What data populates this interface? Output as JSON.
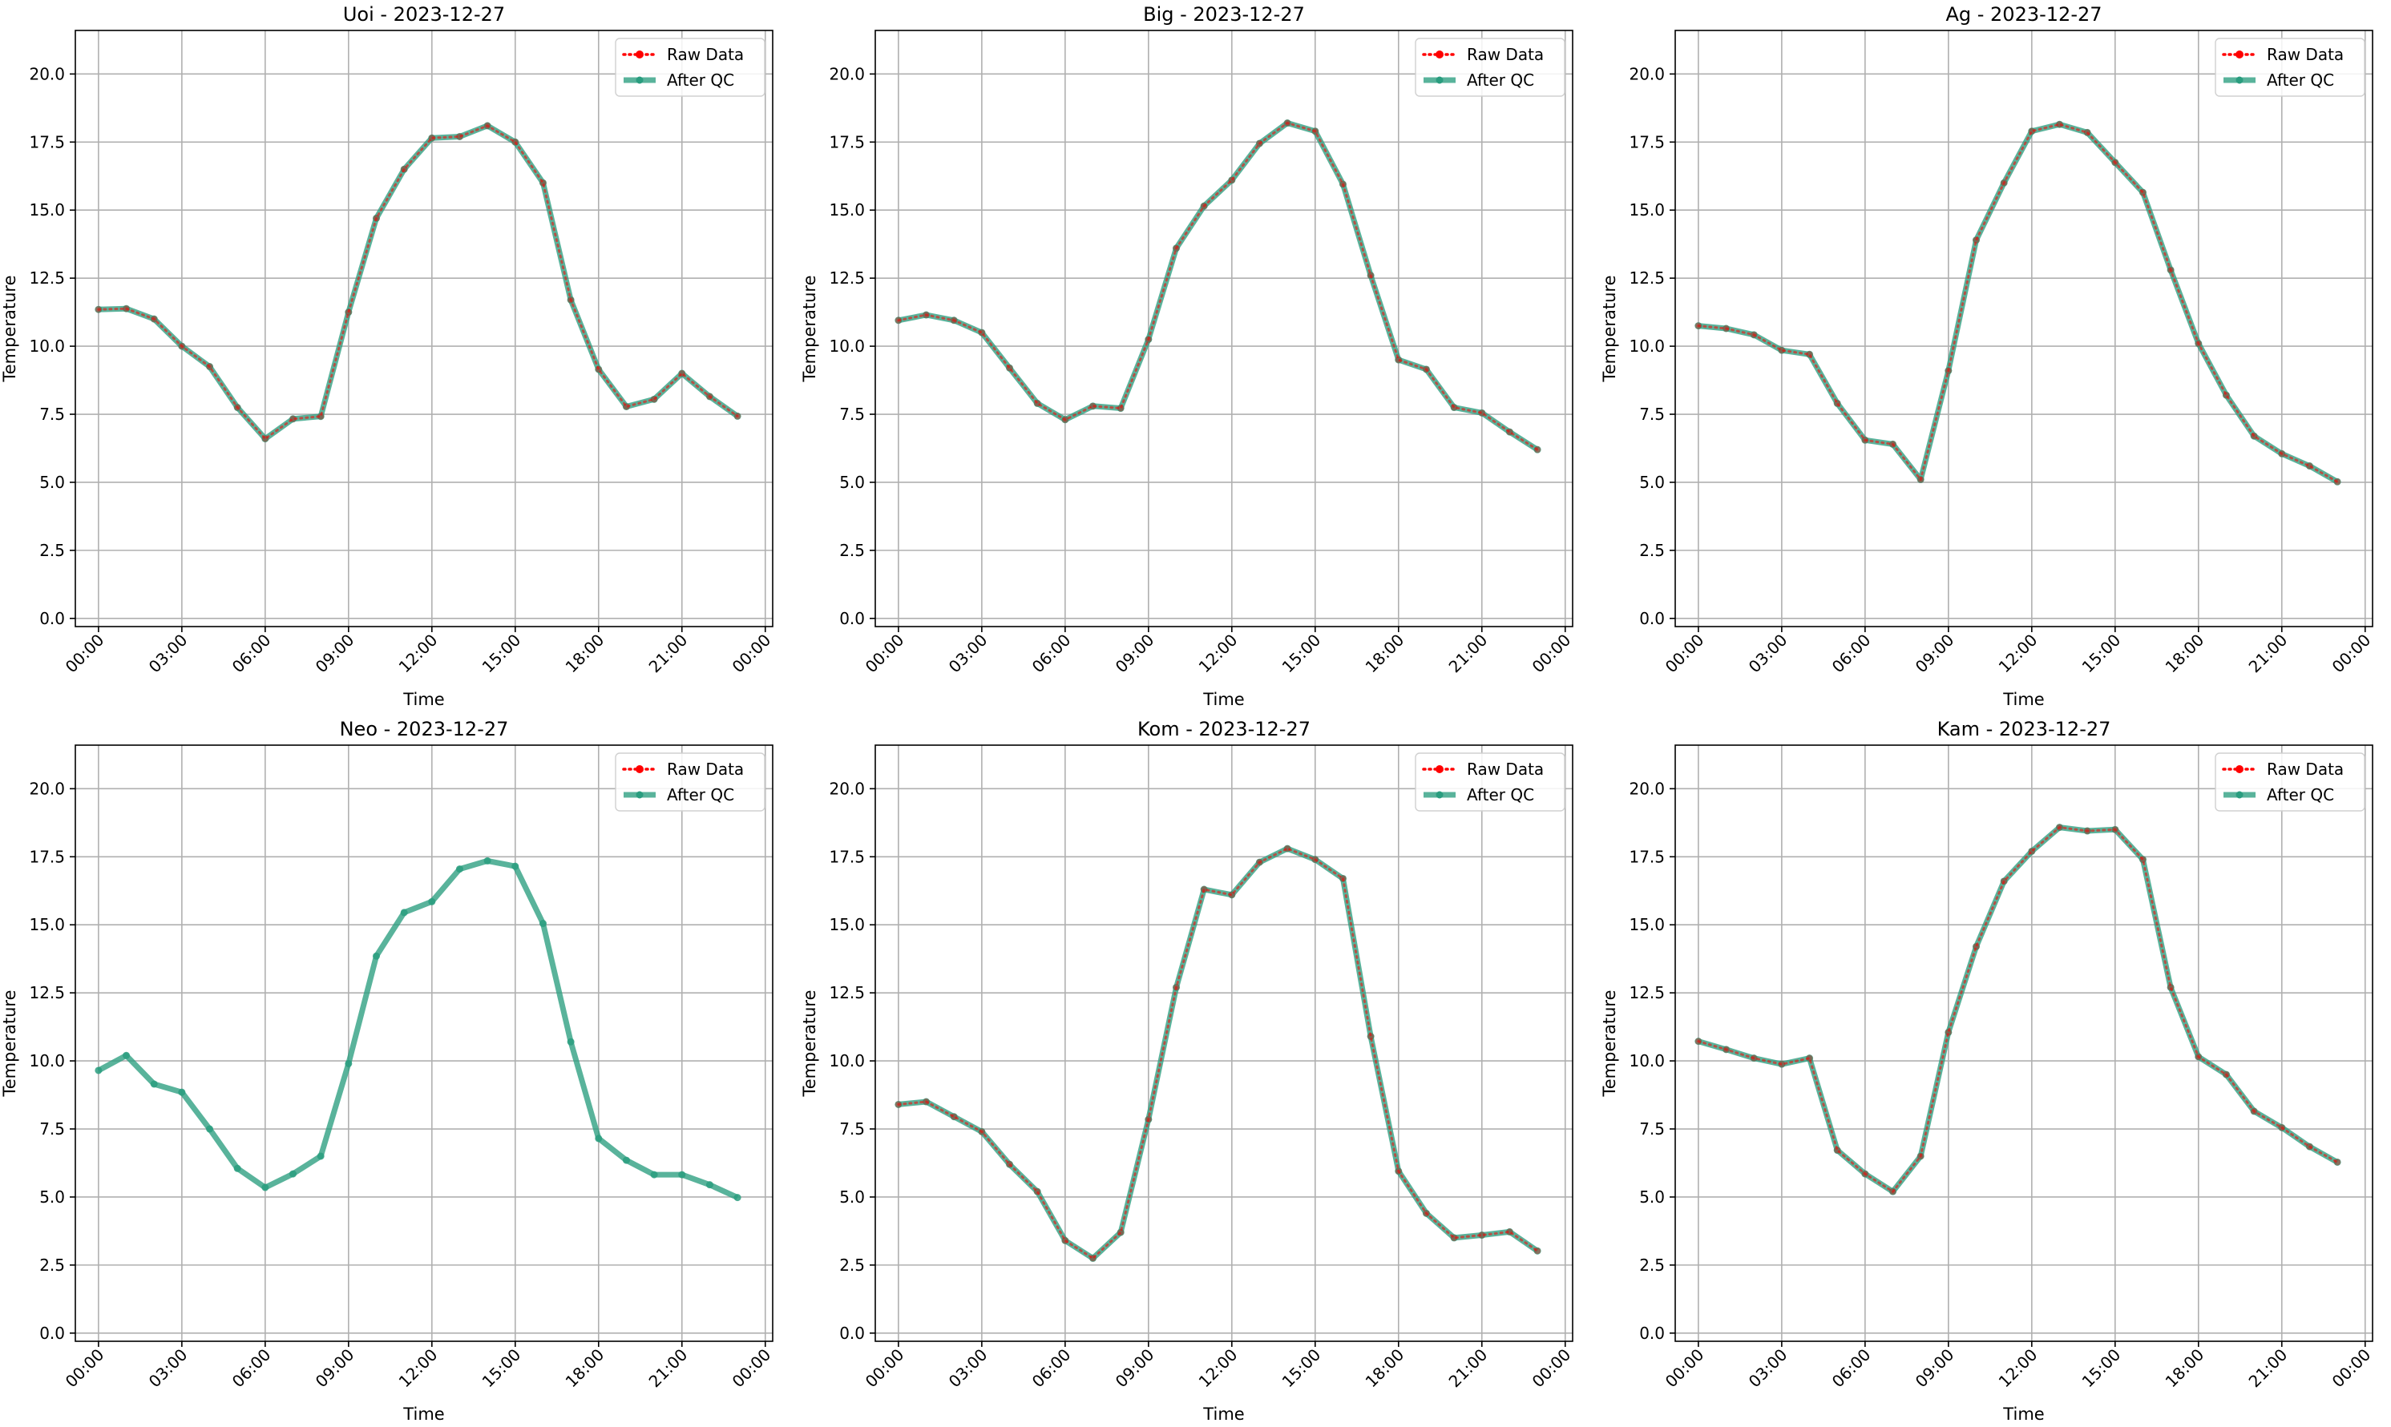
{
  "chart_data": [
    {
      "type": "line",
      "title": "Uoi - 2023-12-27",
      "xlabel": "Time",
      "ylabel": "Temperature",
      "xlim": [
        "2023-12-27 -0:50",
        "2023-12-28 00:16"
      ],
      "ylim": [
        -0.3,
        21.6
      ],
      "xticks": [
        "00:00",
        "03:00",
        "06:00",
        "09:00",
        "12:00",
        "15:00",
        "18:00",
        "21:00",
        "00:00"
      ],
      "yticks": [
        "0.0",
        "2.5",
        "5.0",
        "7.5",
        "10.0",
        "12.5",
        "15.0",
        "17.5",
        "20.0"
      ],
      "grid": true,
      "legend_position": "top-right",
      "x": [
        "00:00",
        "01:00",
        "02:00",
        "03:00",
        "04:00",
        "05:00",
        "06:00",
        "07:00",
        "08:00",
        "09:00",
        "10:00",
        "11:00",
        "12:00",
        "13:00",
        "14:00",
        "15:00",
        "16:00",
        "17:00",
        "18:00",
        "19:00",
        "20:00",
        "21:00",
        "22:00",
        "23:00"
      ],
      "series": [
        {
          "name": "Raw Data",
          "color": "#ff0000",
          "values": [
            11.35,
            11.38,
            11.0,
            10.0,
            9.25,
            7.75,
            6.6,
            7.33,
            7.42,
            11.25,
            14.7,
            16.5,
            17.65,
            17.7,
            18.1,
            17.5,
            16.0,
            11.7,
            9.15,
            7.78,
            8.05,
            9.0,
            8.15,
            7.43
          ]
        },
        {
          "name": "After QC",
          "color": "#2a9d7f",
          "values": [
            11.35,
            11.38,
            11.0,
            10.0,
            9.25,
            7.75,
            6.6,
            7.33,
            7.42,
            11.25,
            14.7,
            16.5,
            17.65,
            17.7,
            18.1,
            17.5,
            16.0,
            11.7,
            9.15,
            7.78,
            8.05,
            9.0,
            8.15,
            7.43
          ]
        }
      ]
    },
    {
      "type": "line",
      "title": "Big - 2023-12-27",
      "xlabel": "Time",
      "ylabel": "Temperature",
      "xlim": [
        "2023-12-27 -0:50",
        "2023-12-28 00:16"
      ],
      "ylim": [
        -0.3,
        21.6
      ],
      "xticks": [
        "00:00",
        "03:00",
        "06:00",
        "09:00",
        "12:00",
        "15:00",
        "18:00",
        "21:00",
        "00:00"
      ],
      "yticks": [
        "0.0",
        "2.5",
        "5.0",
        "7.5",
        "10.0",
        "12.5",
        "15.0",
        "17.5",
        "20.0"
      ],
      "grid": true,
      "legend_position": "top-right",
      "x": [
        "00:00",
        "01:00",
        "02:00",
        "03:00",
        "04:00",
        "05:00",
        "06:00",
        "07:00",
        "08:00",
        "09:00",
        "10:00",
        "11:00",
        "12:00",
        "13:00",
        "14:00",
        "15:00",
        "16:00",
        "17:00",
        "18:00",
        "19:00",
        "20:00",
        "21:00",
        "22:00",
        "23:00"
      ],
      "series": [
        {
          "name": "Raw Data",
          "color": "#ff0000",
          "values": [
            10.95,
            11.15,
            10.95,
            10.5,
            9.2,
            7.9,
            7.3,
            7.8,
            7.72,
            10.25,
            13.6,
            15.15,
            16.1,
            17.45,
            18.2,
            17.9,
            15.95,
            12.6,
            9.5,
            9.15,
            7.75,
            7.55,
            6.85,
            6.2
          ]
        },
        {
          "name": "After QC",
          "color": "#2a9d7f",
          "values": [
            10.95,
            11.15,
            10.95,
            10.5,
            9.2,
            7.9,
            7.3,
            7.8,
            7.72,
            10.25,
            13.6,
            15.15,
            16.1,
            17.45,
            18.2,
            17.9,
            15.95,
            12.6,
            9.5,
            9.15,
            7.75,
            7.55,
            6.85,
            6.2
          ]
        }
      ]
    },
    {
      "type": "line",
      "title": "Ag - 2023-12-27",
      "xlabel": "Time",
      "ylabel": "Temperature",
      "xlim": [
        "2023-12-27 -0:50",
        "2023-12-28 00:16"
      ],
      "ylim": [
        -0.3,
        21.6
      ],
      "xticks": [
        "00:00",
        "03:00",
        "06:00",
        "09:00",
        "12:00",
        "15:00",
        "18:00",
        "21:00",
        "00:00"
      ],
      "yticks": [
        "0.0",
        "2.5",
        "5.0",
        "7.5",
        "10.0",
        "12.5",
        "15.0",
        "17.5",
        "20.0"
      ],
      "grid": true,
      "legend_position": "top-right",
      "x": [
        "00:00",
        "01:00",
        "02:00",
        "03:00",
        "04:00",
        "05:00",
        "06:00",
        "07:00",
        "08:00",
        "09:00",
        "10:00",
        "11:00",
        "12:00",
        "13:00",
        "14:00",
        "15:00",
        "16:00",
        "17:00",
        "18:00",
        "19:00",
        "20:00",
        "21:00",
        "22:00",
        "23:00"
      ],
      "series": [
        {
          "name": "Raw Data",
          "color": "#ff0000",
          "values": [
            10.75,
            10.65,
            10.42,
            9.85,
            9.7,
            7.9,
            6.55,
            6.4,
            5.1,
            9.1,
            13.9,
            16.0,
            17.9,
            18.15,
            17.85,
            16.75,
            15.65,
            12.8,
            10.1,
            8.2,
            6.7,
            6.05,
            5.6,
            5.02
          ]
        },
        {
          "name": "After QC",
          "color": "#2a9d7f",
          "values": [
            10.75,
            10.65,
            10.42,
            9.85,
            9.7,
            7.9,
            6.55,
            6.4,
            5.1,
            9.1,
            13.9,
            16.0,
            17.9,
            18.15,
            17.85,
            16.75,
            15.65,
            12.8,
            10.1,
            8.2,
            6.7,
            6.05,
            5.6,
            5.02
          ]
        }
      ]
    },
    {
      "type": "line",
      "title": "Neo - 2023-12-27",
      "xlabel": "Time",
      "ylabel": "Temperature",
      "xlim": [
        "2023-12-27 -0:50",
        "2023-12-28 00:16"
      ],
      "ylim": [
        -0.3,
        21.6
      ],
      "xticks": [
        "00:00",
        "03:00",
        "06:00",
        "09:00",
        "12:00",
        "15:00",
        "18:00",
        "21:00",
        "00:00"
      ],
      "yticks": [
        "0.0",
        "2.5",
        "5.0",
        "7.5",
        "10.0",
        "12.5",
        "15.0",
        "17.5",
        "20.0"
      ],
      "grid": true,
      "legend_position": "top-right",
      "x": [
        "00:00",
        "01:00",
        "02:00",
        "03:00",
        "04:00",
        "05:00",
        "06:00",
        "07:00",
        "08:00",
        "09:00",
        "10:00",
        "11:00",
        "12:00",
        "13:00",
        "14:00",
        "15:00",
        "16:00",
        "17:00",
        "18:00",
        "19:00",
        "20:00",
        "21:00",
        "22:00",
        "23:00"
      ],
      "series": [
        {
          "name": "Raw Data",
          "color": "#ff0000",
          "values": [
            null,
            null,
            null,
            null,
            null,
            null,
            null,
            null,
            null,
            null,
            null,
            null,
            null,
            null,
            null,
            null,
            null,
            null,
            null,
            null,
            null,
            null,
            null,
            null
          ]
        },
        {
          "name": "After QC",
          "color": "#2a9d7f",
          "values": [
            9.65,
            10.2,
            9.15,
            8.85,
            7.5,
            6.05,
            5.35,
            5.85,
            6.5,
            9.9,
            13.85,
            15.45,
            15.85,
            17.05,
            17.35,
            17.15,
            15.05,
            10.7,
            7.15,
            6.35,
            5.82,
            5.82,
            5.45,
            4.98
          ]
        }
      ]
    },
    {
      "type": "line",
      "title": "Kom - 2023-12-27",
      "xlabel": "Time",
      "ylabel": "Temperature",
      "xlim": [
        "2023-12-27 -0:50",
        "2023-12-28 00:16"
      ],
      "ylim": [
        -0.3,
        21.6
      ],
      "xticks": [
        "00:00",
        "03:00",
        "06:00",
        "09:00",
        "12:00",
        "15:00",
        "18:00",
        "21:00",
        "00:00"
      ],
      "yticks": [
        "0.0",
        "2.5",
        "5.0",
        "7.5",
        "10.0",
        "12.5",
        "15.0",
        "17.5",
        "20.0"
      ],
      "grid": true,
      "legend_position": "top-right",
      "x": [
        "00:00",
        "01:00",
        "02:00",
        "03:00",
        "04:00",
        "05:00",
        "06:00",
        "07:00",
        "08:00",
        "09:00",
        "10:00",
        "11:00",
        "12:00",
        "13:00",
        "14:00",
        "15:00",
        "16:00",
        "17:00",
        "18:00",
        "19:00",
        "20:00",
        "21:00",
        "22:00",
        "23:00"
      ],
      "series": [
        {
          "name": "Raw Data",
          "color": "#ff0000",
          "values": [
            8.4,
            8.5,
            7.95,
            7.4,
            6.2,
            5.2,
            3.4,
            2.75,
            3.7,
            7.85,
            12.7,
            16.3,
            16.1,
            17.3,
            17.8,
            17.4,
            16.7,
            10.9,
            5.95,
            4.4,
            3.5,
            3.6,
            3.72,
            3.02
          ]
        },
        {
          "name": "After QC",
          "color": "#2a9d7f",
          "values": [
            8.4,
            8.5,
            7.95,
            7.4,
            6.2,
            5.2,
            3.4,
            2.75,
            3.7,
            7.85,
            12.7,
            16.3,
            16.1,
            17.3,
            17.8,
            17.4,
            16.7,
            10.9,
            5.95,
            4.4,
            3.5,
            3.6,
            3.72,
            3.02
          ]
        }
      ]
    },
    {
      "type": "line",
      "title": "Kam - 2023-12-27",
      "xlabel": "Time",
      "ylabel": "Temperature",
      "xlim": [
        "2023-12-27 -0:50",
        "2023-12-28 00:16"
      ],
      "ylim": [
        -0.3,
        21.6
      ],
      "xticks": [
        "00:00",
        "03:00",
        "06:00",
        "09:00",
        "12:00",
        "15:00",
        "18:00",
        "21:00",
        "00:00"
      ],
      "yticks": [
        "0.0",
        "2.5",
        "5.0",
        "7.5",
        "10.0",
        "12.5",
        "15.0",
        "17.5",
        "20.0"
      ],
      "grid": true,
      "legend_position": "top-right",
      "x": [
        "00:00",
        "01:00",
        "02:00",
        "03:00",
        "04:00",
        "05:00",
        "06:00",
        "07:00",
        "08:00",
        "09:00",
        "10:00",
        "11:00",
        "12:00",
        "13:00",
        "14:00",
        "15:00",
        "16:00",
        "17:00",
        "18:00",
        "19:00",
        "20:00",
        "21:00",
        "22:00",
        "23:00"
      ],
      "series": [
        {
          "name": "Raw Data",
          "color": "#ff0000",
          "values": [
            10.72,
            10.42,
            10.1,
            9.88,
            10.1,
            6.72,
            5.85,
            5.2,
            6.5,
            11.05,
            14.2,
            16.6,
            17.7,
            18.58,
            18.45,
            18.5,
            17.4,
            12.7,
            10.15,
            9.5,
            8.15,
            7.55,
            6.85,
            6.28
          ]
        },
        {
          "name": "After QC",
          "color": "#2a9d7f",
          "values": [
            10.72,
            10.42,
            10.1,
            9.88,
            10.1,
            6.72,
            5.85,
            5.2,
            6.5,
            11.05,
            14.2,
            16.6,
            17.7,
            18.58,
            18.45,
            18.5,
            17.4,
            12.7,
            10.15,
            9.5,
            8.15,
            7.55,
            6.85,
            6.28
          ]
        }
      ]
    }
  ]
}
